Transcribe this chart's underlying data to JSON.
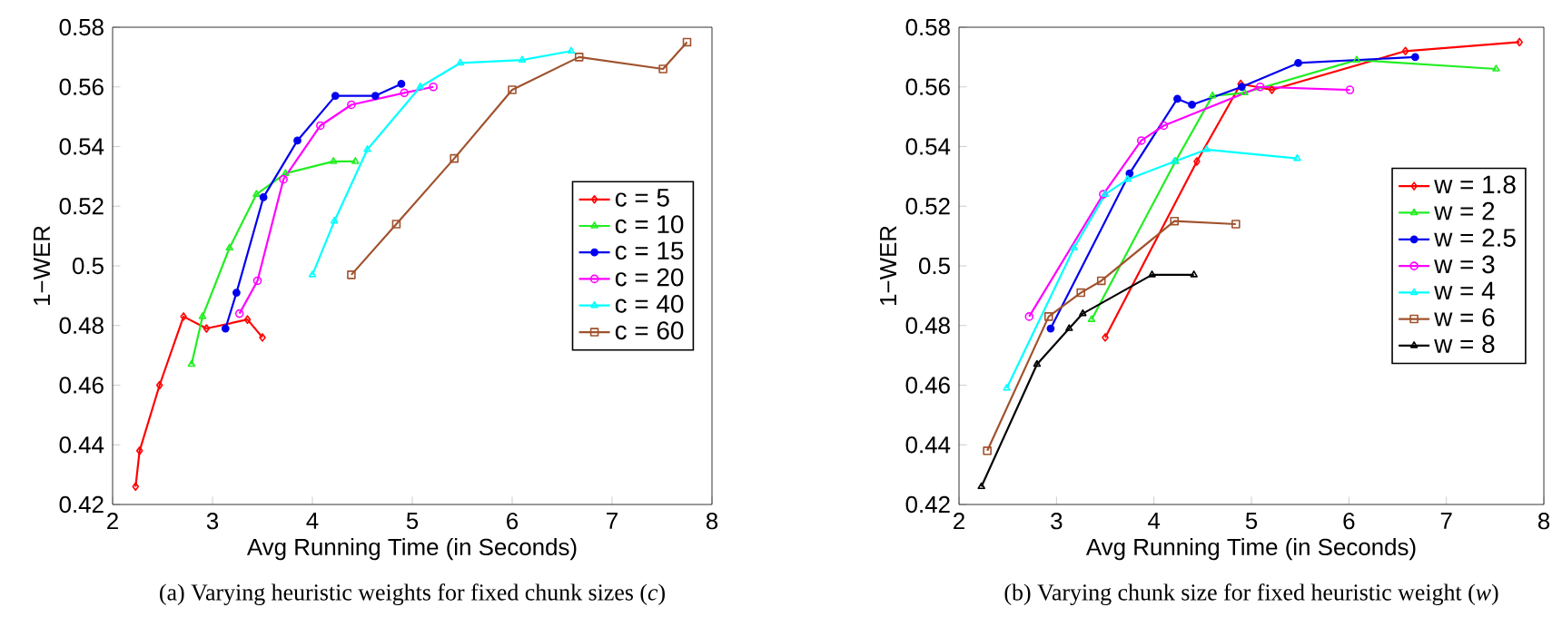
{
  "chart_data": [
    {
      "type": "line",
      "xlabel": "Avg Running Time (in Seconds)",
      "ylabel": "1−WER",
      "xlim": [
        2,
        8
      ],
      "ylim": [
        0.42,
        0.58
      ],
      "xticks": [
        2,
        3,
        4,
        5,
        6,
        7,
        8
      ],
      "yticks": [
        0.42,
        0.44,
        0.46,
        0.48,
        0.5,
        0.52,
        0.54,
        0.56,
        0.58
      ],
      "legend": "right",
      "grid": false,
      "annotations": [
        "(a) Varying heuristic weights for fixed chunk sizes (*c*)"
      ],
      "series": [
        {
          "name": "c = 5",
          "color": "#ff0000",
          "marker": "diamond",
          "x": [
            2.23,
            2.27,
            2.47,
            2.71,
            2.94,
            3.35,
            3.5
          ],
          "values": [
            0.426,
            0.438,
            0.46,
            0.483,
            0.479,
            0.482,
            0.476
          ]
        },
        {
          "name": "c = 10",
          "color": "#22ee22",
          "marker": "triangle",
          "x": [
            2.79,
            2.9,
            3.17,
            3.44,
            3.73,
            4.21,
            4.43
          ],
          "values": [
            0.467,
            0.483,
            0.506,
            0.524,
            0.531,
            0.535,
            0.535
          ]
        },
        {
          "name": "c = 15",
          "color": "#0000ee",
          "marker": "dot",
          "x": [
            3.13,
            3.24,
            3.51,
            3.85,
            4.23,
            4.63,
            4.89
          ],
          "values": [
            0.479,
            0.491,
            0.523,
            0.542,
            0.557,
            0.557,
            0.561
          ]
        },
        {
          "name": "c = 20",
          "color": "#ff00ff",
          "marker": "circle",
          "x": [
            3.27,
            3.45,
            3.71,
            4.08,
            4.39,
            4.92,
            5.21
          ],
          "values": [
            0.484,
            0.495,
            0.529,
            0.547,
            0.554,
            0.558,
            0.56
          ]
        },
        {
          "name": "c = 40",
          "color": "#00ffff",
          "marker": "triangle",
          "x": [
            4.0,
            4.22,
            4.55,
            5.08,
            5.48,
            6.1,
            6.59
          ],
          "values": [
            0.497,
            0.515,
            0.539,
            0.56,
            0.568,
            0.569,
            0.572
          ]
        },
        {
          "name": "c = 60",
          "color": "#a0522d",
          "marker": "square",
          "x": [
            4.39,
            4.84,
            5.42,
            6.0,
            6.67,
            7.51,
            7.75
          ],
          "values": [
            0.497,
            0.514,
            0.536,
            0.559,
            0.57,
            0.566,
            0.575
          ]
        }
      ]
    },
    {
      "type": "line",
      "xlabel": "Avg Running Time (in Seconds)",
      "ylabel": "1−WER",
      "xlim": [
        2,
        8
      ],
      "ylim": [
        0.42,
        0.58
      ],
      "xticks": [
        2,
        3,
        4,
        5,
        6,
        7,
        8
      ],
      "yticks": [
        0.42,
        0.44,
        0.46,
        0.48,
        0.5,
        0.52,
        0.54,
        0.56,
        0.58
      ],
      "legend": "right",
      "grid": false,
      "annotations": [
        "(b) Varying chunk size for fixed heuristic weight (*w*)"
      ],
      "series": [
        {
          "name": "w = 1.8",
          "color": "#ff0000",
          "marker": "diamond",
          "x": [
            3.5,
            4.44,
            4.89,
            5.21,
            6.58,
            7.75
          ],
          "values": [
            0.476,
            0.535,
            0.561,
            0.559,
            0.572,
            0.575
          ]
        },
        {
          "name": "w = 2",
          "color": "#22ee22",
          "marker": "triangle",
          "x": [
            3.36,
            4.22,
            4.6,
            4.93,
            6.08,
            7.51
          ],
          "values": [
            0.482,
            0.535,
            0.557,
            0.558,
            0.569,
            0.566
          ]
        },
        {
          "name": "w = 2.5",
          "color": "#0000ee",
          "marker": "dot",
          "x": [
            2.94,
            3.75,
            4.24,
            4.39,
            4.9,
            5.48,
            6.68
          ],
          "values": [
            0.479,
            0.531,
            0.556,
            0.554,
            0.56,
            0.568,
            0.57
          ]
        },
        {
          "name": "w = 3",
          "color": "#ff00ff",
          "marker": "circle",
          "x": [
            2.72,
            3.48,
            3.87,
            4.1,
            5.09,
            6.01
          ],
          "values": [
            0.483,
            0.524,
            0.542,
            0.547,
            0.56,
            0.559
          ]
        },
        {
          "name": "w = 4",
          "color": "#00ffff",
          "marker": "triangle",
          "x": [
            2.49,
            3.18,
            3.5,
            3.73,
            4.21,
            4.54,
            5.47
          ],
          "values": [
            0.459,
            0.506,
            0.524,
            0.529,
            0.535,
            0.539,
            0.536
          ]
        },
        {
          "name": "w = 6",
          "color": "#a0522d",
          "marker": "square",
          "x": [
            2.29,
            2.92,
            3.25,
            3.46,
            4.21,
            4.84
          ],
          "values": [
            0.438,
            0.483,
            0.491,
            0.495,
            0.515,
            0.514
          ]
        },
        {
          "name": "w = 8",
          "color": "#000000",
          "marker": "triangle",
          "x": [
            2.23,
            2.8,
            3.13,
            3.27,
            3.98,
            4.41
          ],
          "values": [
            0.426,
            0.467,
            0.479,
            0.484,
            0.497,
            0.497
          ]
        }
      ]
    }
  ]
}
